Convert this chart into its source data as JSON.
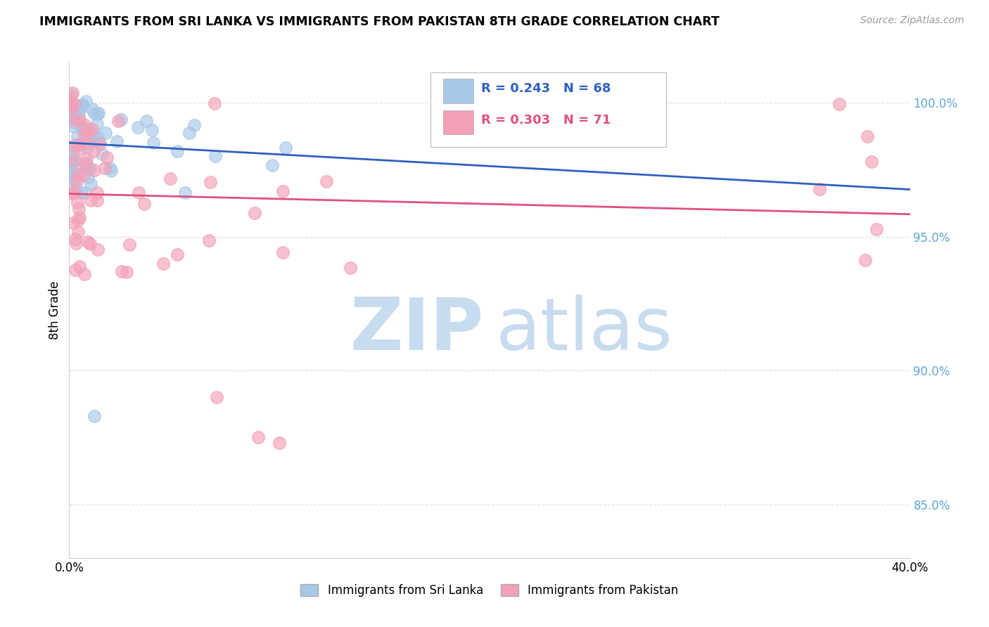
{
  "title": "IMMIGRANTS FROM SRI LANKA VS IMMIGRANTS FROM PAKISTAN 8TH GRADE CORRELATION CHART",
  "source": "Source: ZipAtlas.com",
  "ylabel": "8th Grade",
  "legend_label_1": "Immigrants from Sri Lanka",
  "legend_label_2": "Immigrants from Pakistan",
  "r1": 0.243,
  "n1": 68,
  "r2": 0.303,
  "n2": 71,
  "color_sri_lanka": "#A8C8E8",
  "color_pakistan": "#F4A0B8",
  "color_line_sri_lanka": "#3060C0",
  "color_line_pakistan": "#E05080",
  "watermark_zip_color": "#C8DCF0",
  "watermark_atlas_color": "#C8DCF0",
  "ytick_color": "#5BA8D8",
  "xlim": [
    0.0,
    0.4
  ],
  "ylim": [
    83.0,
    101.5
  ],
  "yticks": [
    85.0,
    90.0,
    95.0,
    100.0
  ],
  "ytick_labels": [
    "85.0%",
    "90.0%",
    "95.0%",
    "100.0%"
  ]
}
